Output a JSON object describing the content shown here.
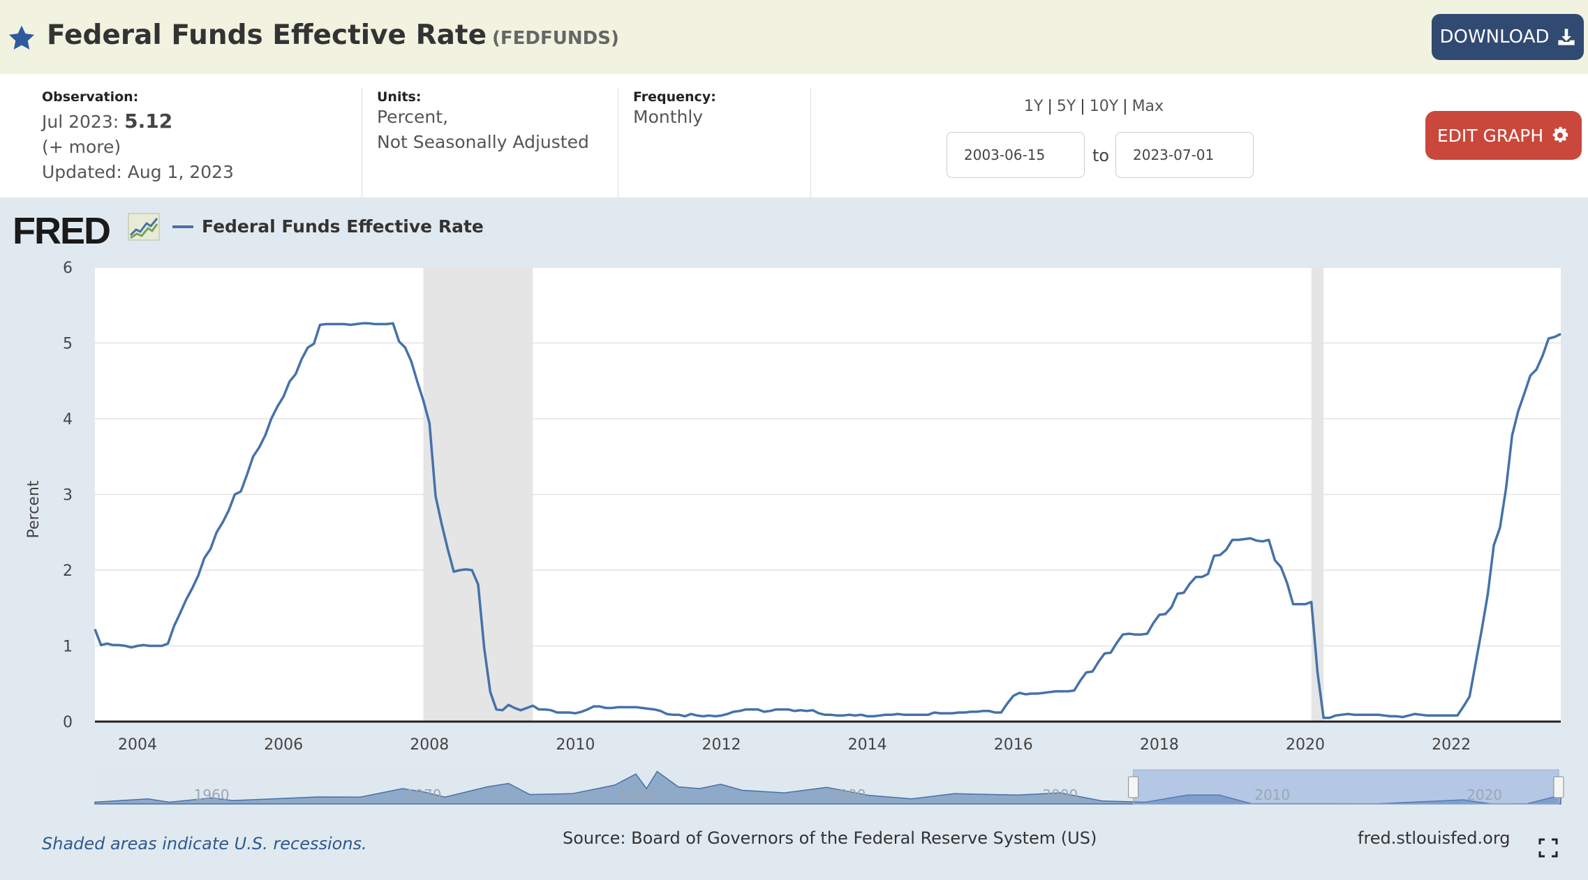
{
  "header": {
    "title": "Federal Funds Effective Rate",
    "series_id": "(FEDFUNDS)",
    "download_label": "DOWNLOAD"
  },
  "meta": {
    "observation_label": "Observation:",
    "observation_period": "Jul 2023:",
    "observation_value": "5.12",
    "more_link": "(+ more)",
    "updated": "Updated: Aug 1, 2023",
    "units_label": "Units:",
    "units_line1": "Percent,",
    "units_line2": "Not Seasonally Adjusted",
    "frequency_label": "Frequency:",
    "frequency_value": "Monthly",
    "range_links": [
      "1Y",
      "5Y",
      "10Y",
      "Max"
    ],
    "start_date": "2003-06-15",
    "to_label": "to",
    "end_date": "2023-07-01",
    "edit_label": "EDIT GRAPH"
  },
  "brand": {
    "logo": "FRED"
  },
  "footer": {
    "note": "Shaded areas indicate U.S. recessions.",
    "source": "Source: Board of Governors of the Federal Reserve System (US)",
    "site": "fred.stlouisfed.org"
  },
  "colors": {
    "line": "#4572a7",
    "recession": "#e5e5e5",
    "header_bg": "#f1f2df",
    "download": "#304a72",
    "edit": "#c9473b"
  },
  "chart_data": {
    "type": "line",
    "title": "",
    "legend": [
      "Federal Funds Effective Rate"
    ],
    "ylabel": "Percent",
    "ylim": [
      0,
      6
    ],
    "yticks": [
      0,
      1,
      2,
      3,
      4,
      5,
      6
    ],
    "xlim": [
      "2003-06",
      "2023-07"
    ],
    "xticks": [
      "2004",
      "2006",
      "2008",
      "2010",
      "2012",
      "2014",
      "2016",
      "2018",
      "2020",
      "2022"
    ],
    "grid": true,
    "recessions": [
      [
        "2007-12",
        "2009-06"
      ],
      [
        "2020-02",
        "2020-04"
      ]
    ],
    "navigator": {
      "ticks": [
        "1960",
        "1970",
        "1980",
        "1990",
        "2000",
        "2010",
        "2020"
      ],
      "selected": [
        "2003-06",
        "2023-07"
      ]
    },
    "series": [
      {
        "name": "Federal Funds Effective Rate",
        "x": [
          "2003-06",
          "2003-07",
          "2003-08",
          "2003-09",
          "2003-10",
          "2003-11",
          "2003-12",
          "2004-01",
          "2004-02",
          "2004-03",
          "2004-04",
          "2004-05",
          "2004-06",
          "2004-07",
          "2004-08",
          "2004-09",
          "2004-10",
          "2004-11",
          "2004-12",
          "2005-01",
          "2005-02",
          "2005-03",
          "2005-04",
          "2005-05",
          "2005-06",
          "2005-07",
          "2005-08",
          "2005-09",
          "2005-10",
          "2005-11",
          "2005-12",
          "2006-01",
          "2006-02",
          "2006-03",
          "2006-04",
          "2006-05",
          "2006-06",
          "2006-07",
          "2006-08",
          "2006-09",
          "2006-10",
          "2006-11",
          "2006-12",
          "2007-01",
          "2007-02",
          "2007-03",
          "2007-04",
          "2007-05",
          "2007-06",
          "2007-07",
          "2007-08",
          "2007-09",
          "2007-10",
          "2007-11",
          "2007-12",
          "2008-01",
          "2008-02",
          "2008-03",
          "2008-04",
          "2008-05",
          "2008-06",
          "2008-07",
          "2008-08",
          "2008-09",
          "2008-10",
          "2008-11",
          "2008-12",
          "2009-01",
          "2009-02",
          "2009-03",
          "2009-04",
          "2009-05",
          "2009-06",
          "2009-07",
          "2009-08",
          "2009-09",
          "2009-10",
          "2009-11",
          "2009-12",
          "2010-01",
          "2010-02",
          "2010-03",
          "2010-04",
          "2010-05",
          "2010-06",
          "2010-07",
          "2010-08",
          "2010-09",
          "2010-10",
          "2010-11",
          "2010-12",
          "2011-01",
          "2011-02",
          "2011-03",
          "2011-04",
          "2011-05",
          "2011-06",
          "2011-07",
          "2011-08",
          "2011-09",
          "2011-10",
          "2011-11",
          "2011-12",
          "2012-01",
          "2012-02",
          "2012-03",
          "2012-04",
          "2012-05",
          "2012-06",
          "2012-07",
          "2012-08",
          "2012-09",
          "2012-10",
          "2012-11",
          "2012-12",
          "2013-01",
          "2013-02",
          "2013-03",
          "2013-04",
          "2013-05",
          "2013-06",
          "2013-07",
          "2013-08",
          "2013-09",
          "2013-10",
          "2013-11",
          "2013-12",
          "2014-01",
          "2014-02",
          "2014-03",
          "2014-04",
          "2014-05",
          "2014-06",
          "2014-07",
          "2014-08",
          "2014-09",
          "2014-10",
          "2014-11",
          "2014-12",
          "2015-01",
          "2015-02",
          "2015-03",
          "2015-04",
          "2015-05",
          "2015-06",
          "2015-07",
          "2015-08",
          "2015-09",
          "2015-10",
          "2015-11",
          "2015-12",
          "2016-01",
          "2016-02",
          "2016-03",
          "2016-04",
          "2016-05",
          "2016-06",
          "2016-07",
          "2016-08",
          "2016-09",
          "2016-10",
          "2016-11",
          "2016-12",
          "2017-01",
          "2017-02",
          "2017-03",
          "2017-04",
          "2017-05",
          "2017-06",
          "2017-07",
          "2017-08",
          "2017-09",
          "2017-10",
          "2017-11",
          "2017-12",
          "2018-01",
          "2018-02",
          "2018-03",
          "2018-04",
          "2018-05",
          "2018-06",
          "2018-07",
          "2018-08",
          "2018-09",
          "2018-10",
          "2018-11",
          "2018-12",
          "2019-01",
          "2019-02",
          "2019-03",
          "2019-04",
          "2019-05",
          "2019-06",
          "2019-07",
          "2019-08",
          "2019-09",
          "2019-10",
          "2019-11",
          "2019-12",
          "2020-01",
          "2020-02",
          "2020-03",
          "2020-04",
          "2020-05",
          "2020-06",
          "2020-07",
          "2020-08",
          "2020-09",
          "2020-10",
          "2020-11",
          "2020-12",
          "2021-01",
          "2021-02",
          "2021-03",
          "2021-04",
          "2021-05",
          "2021-06",
          "2021-07",
          "2021-08",
          "2021-09",
          "2021-10",
          "2021-11",
          "2021-12",
          "2022-01",
          "2022-02",
          "2022-03",
          "2022-04",
          "2022-05",
          "2022-06",
          "2022-07",
          "2022-08",
          "2022-09",
          "2022-10",
          "2022-11",
          "2022-12",
          "2023-01",
          "2023-02",
          "2023-03",
          "2023-04",
          "2023-05",
          "2023-06",
          "2023-07"
        ],
        "values": [
          1.22,
          1.01,
          1.03,
          1.01,
          1.01,
          1.0,
          0.98,
          1.0,
          1.01,
          1.0,
          1.0,
          1.0,
          1.03,
          1.26,
          1.43,
          1.61,
          1.76,
          1.93,
          2.16,
          2.28,
          2.5,
          2.63,
          2.79,
          3.0,
          3.04,
          3.26,
          3.5,
          3.62,
          3.78,
          4.0,
          4.16,
          4.29,
          4.49,
          4.59,
          4.79,
          4.94,
          4.99,
          5.24,
          5.25,
          5.25,
          5.25,
          5.25,
          5.24,
          5.25,
          5.26,
          5.26,
          5.25,
          5.25,
          5.25,
          5.26,
          5.02,
          4.94,
          4.76,
          4.49,
          4.24,
          3.94,
          2.98,
          2.61,
          2.28,
          1.98,
          2.0,
          2.01,
          2.0,
          1.81,
          0.97,
          0.39,
          0.16,
          0.15,
          0.22,
          0.18,
          0.15,
          0.18,
          0.21,
          0.16,
          0.16,
          0.15,
          0.12,
          0.12,
          0.12,
          0.11,
          0.13,
          0.16,
          0.2,
          0.2,
          0.18,
          0.18,
          0.19,
          0.19,
          0.19,
          0.19,
          0.18,
          0.17,
          0.16,
          0.14,
          0.1,
          0.09,
          0.09,
          0.07,
          0.1,
          0.08,
          0.07,
          0.08,
          0.07,
          0.08,
          0.1,
          0.13,
          0.14,
          0.16,
          0.16,
          0.16,
          0.13,
          0.14,
          0.16,
          0.16,
          0.16,
          0.14,
          0.15,
          0.14,
          0.15,
          0.11,
          0.09,
          0.09,
          0.08,
          0.08,
          0.09,
          0.08,
          0.09,
          0.07,
          0.07,
          0.08,
          0.09,
          0.09,
          0.1,
          0.09,
          0.09,
          0.09,
          0.09,
          0.09,
          0.12,
          0.11,
          0.11,
          0.11,
          0.12,
          0.12,
          0.13,
          0.13,
          0.14,
          0.14,
          0.12,
          0.12,
          0.24,
          0.34,
          0.38,
          0.36,
          0.37,
          0.37,
          0.38,
          0.39,
          0.4,
          0.4,
          0.4,
          0.41,
          0.54,
          0.65,
          0.66,
          0.79,
          0.9,
          0.91,
          1.04,
          1.15,
          1.16,
          1.15,
          1.15,
          1.16,
          1.3,
          1.41,
          1.42,
          1.51,
          1.69,
          1.7,
          1.82,
          1.91,
          1.91,
          1.95,
          2.19,
          2.2,
          2.27,
          2.4,
          2.4,
          2.41,
          2.42,
          2.39,
          2.38,
          2.4,
          2.13,
          2.04,
          1.83,
          1.55,
          1.55,
          1.55,
          1.58,
          0.65,
          0.05,
          0.05,
          0.08,
          0.09,
          0.1,
          0.09,
          0.09,
          0.09,
          0.09,
          0.09,
          0.08,
          0.07,
          0.07,
          0.06,
          0.08,
          0.1,
          0.09,
          0.08,
          0.08,
          0.08,
          0.08,
          0.08,
          0.08,
          0.2,
          0.33,
          0.77,
          1.21,
          1.68,
          2.33,
          2.56,
          3.08,
          3.78,
          4.1,
          4.33,
          4.57,
          4.65,
          4.83,
          5.06,
          5.08,
          5.12
        ]
      }
    ]
  }
}
